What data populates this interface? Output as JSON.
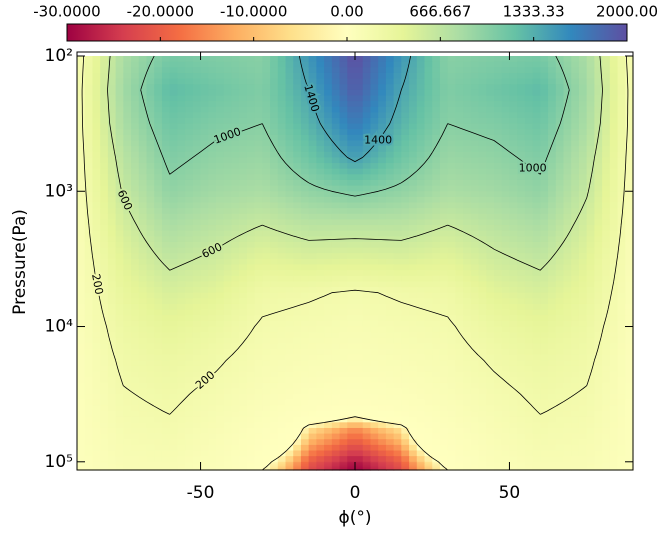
{
  "chart_data": {
    "type": "contour",
    "x_label": "ϕ(°)",
    "y_label": "Pressure(Pa)",
    "xlim": [
      -90,
      90
    ],
    "xticks": [
      -50,
      0,
      50
    ],
    "ylim": [
      100,
      115000
    ],
    "log_y": true,
    "yticks": [
      {
        "value": 100,
        "label": "10²"
      },
      {
        "value": 1000,
        "label": "10³"
      },
      {
        "value": 10000,
        "label": "10⁴"
      },
      {
        "value": 100000,
        "label": "10⁵"
      }
    ],
    "colormap": [
      "#9e0142",
      "#d53e4f",
      "#f46d43",
      "#fdae61",
      "#fee08b",
      "#ffffbf",
      "#e6f598",
      "#abdda4",
      "#66c2a5",
      "#3288bd",
      "#5e4fa2"
    ],
    "zticks": [
      {
        "value": -30,
        "label": "-30.0000"
      },
      {
        "value": -20,
        "label": "-20.0000"
      },
      {
        "value": -10,
        "label": "-10.0000"
      },
      {
        "value": 0,
        "label": "0.00"
      },
      666.667,
      1333.33,
      {
        "value": 2000,
        "label": "2000.00"
      }
    ],
    "levels": [
      0,
      200,
      600,
      1000,
      1400
    ],
    "contour_labels": [
      200,
      600,
      1000,
      1400
    ],
    "x": [
      -90,
      -75,
      -60,
      -45,
      -30,
      -15,
      0,
      15,
      30,
      45,
      60,
      75,
      90
    ],
    "y": [
      100,
      178,
      316,
      562,
      1000,
      1778,
      3162,
      5623,
      10000,
      17783,
      31623,
      56234,
      100000,
      115000
    ],
    "z": [
      [
        100,
        800,
        1100,
        1050,
        1000,
        1500,
        2000,
        1500,
        1000,
        1050,
        1100,
        800,
        100
      ],
      [
        120,
        850,
        1250,
        1150,
        1050,
        1400,
        1900,
        1400,
        1050,
        1150,
        1250,
        850,
        120
      ],
      [
        120,
        800,
        1150,
        1050,
        1000,
        1300,
        1700,
        1300,
        1000,
        1050,
        1150,
        800,
        120
      ],
      [
        110,
        700,
        1050,
        950,
        900,
        1150,
        1450,
        1150,
        900,
        950,
        1050,
        700,
        110
      ],
      [
        100,
        620,
        950,
        850,
        800,
        950,
        1050,
        950,
        800,
        850,
        950,
        620,
        100
      ],
      [
        90,
        520,
        800,
        700,
        600,
        700,
        700,
        700,
        600,
        700,
        800,
        520,
        90
      ],
      [
        80,
        430,
        650,
        560,
        420,
        480,
        450,
        480,
        420,
        560,
        650,
        430,
        80
      ],
      [
        70,
        350,
        500,
        420,
        250,
        220,
        180,
        220,
        250,
        420,
        500,
        350,
        70
      ],
      [
        60,
        280,
        380,
        300,
        180,
        150,
        120,
        150,
        180,
        300,
        380,
        280,
        60
      ],
      [
        50,
        230,
        290,
        220,
        130,
        100,
        80,
        100,
        130,
        220,
        290,
        230,
        50
      ],
      [
        45,
        190,
        230,
        160,
        90,
        50,
        30,
        50,
        90,
        160,
        230,
        190,
        45
      ],
      [
        40,
        150,
        180,
        110,
        40,
        -5,
        -15,
        -5,
        40,
        110,
        180,
        150,
        40
      ],
      [
        35,
        110,
        120,
        70,
        5,
        -20,
        -28,
        -20,
        5,
        70,
        120,
        110,
        35
      ],
      [
        30,
        100,
        110,
        60,
        0,
        -22,
        -30,
        -22,
        0,
        60,
        110,
        100,
        30
      ]
    ]
  }
}
